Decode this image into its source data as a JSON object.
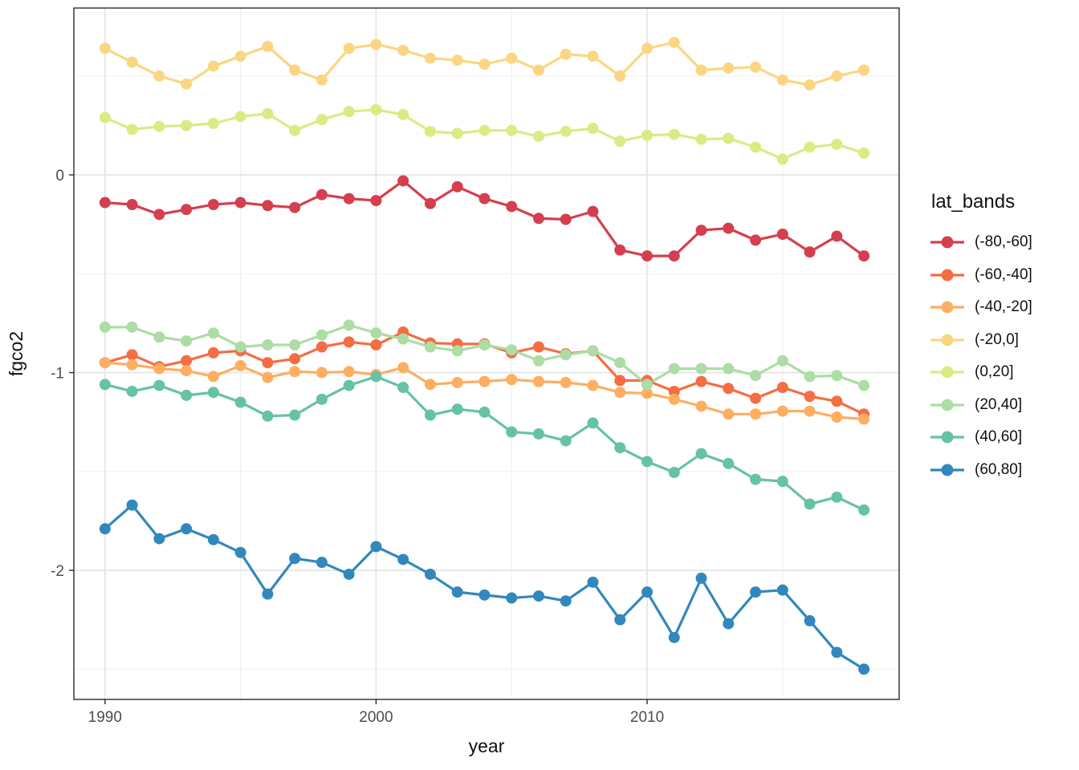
{
  "figure": {
    "x_axis_title": "year",
    "y_axis_title": "fgco2"
  },
  "legend": {
    "title": "lat_bands"
  },
  "chart_data": {
    "type": "line",
    "title": "",
    "xlabel": "year",
    "ylabel": "fgco2",
    "grid": true,
    "legend_position": "right",
    "x": [
      1990,
      1991,
      1992,
      1993,
      1994,
      1995,
      1996,
      1997,
      1998,
      1999,
      2000,
      2001,
      2002,
      2003,
      2004,
      2005,
      2006,
      2007,
      2008,
      2009,
      2010,
      2011,
      2012,
      2013,
      2014,
      2015,
      2016,
      2017,
      2018
    ],
    "xlim": [
      1988.85,
      2019.3
    ],
    "ylim": [
      -2.653,
      0.844
    ],
    "x_tick_values": [
      1990,
      2000,
      2010
    ],
    "x_tick_labels": [
      "1990",
      "2000",
      "2010"
    ],
    "x_minor_gridlines": [
      1995,
      2005,
      2015
    ],
    "y_tick_values": [
      0,
      -1,
      -2
    ],
    "y_tick_labels": [
      "0",
      "-1",
      "-2"
    ],
    "y_minor_gridlines": [
      0.5,
      -0.5,
      -1.5,
      -2.5
    ],
    "series": [
      {
        "name": "(-80,-60]",
        "color": "#D53E4F",
        "values": [
          -0.14,
          -0.15,
          -0.2,
          -0.175,
          -0.15,
          -0.14,
          -0.155,
          -0.165,
          -0.1,
          -0.12,
          -0.13,
          -0.03,
          -0.145,
          -0.06,
          -0.12,
          -0.16,
          -0.22,
          -0.225,
          -0.185,
          -0.38,
          -0.41,
          -0.41,
          -0.28,
          -0.27,
          -0.33,
          -0.3,
          -0.39,
          -0.31,
          -0.41
        ]
      },
      {
        "name": "(-60,-40]",
        "color": "#F46D43",
        "values": [
          -0.95,
          -0.91,
          -0.97,
          -0.94,
          -0.9,
          -0.89,
          -0.95,
          -0.93,
          -0.87,
          -0.845,
          -0.86,
          -0.795,
          -0.85,
          -0.855,
          -0.855,
          -0.9,
          -0.87,
          -0.905,
          -0.89,
          -1.04,
          -1.04,
          -1.095,
          -1.045,
          -1.08,
          -1.13,
          -1.075,
          -1.12,
          -1.145,
          -1.21
        ]
      },
      {
        "name": "(-40,-20]",
        "color": "#FDAE61",
        "values": [
          -0.95,
          -0.96,
          -0.98,
          -0.99,
          -1.02,
          -0.965,
          -1.025,
          -0.995,
          -1.0,
          -0.995,
          -1.01,
          -0.975,
          -1.06,
          -1.05,
          -1.045,
          -1.035,
          -1.045,
          -1.05,
          -1.065,
          -1.1,
          -1.105,
          -1.135,
          -1.17,
          -1.21,
          -1.21,
          -1.195,
          -1.195,
          -1.225,
          -1.235
        ]
      },
      {
        "name": "(-20,0]",
        "color": "#FBD682",
        "values": [
          0.64,
          0.57,
          0.5,
          0.46,
          0.55,
          0.6,
          0.65,
          0.53,
          0.48,
          0.64,
          0.66,
          0.63,
          0.59,
          0.58,
          0.56,
          0.59,
          0.53,
          0.61,
          0.6,
          0.5,
          0.64,
          0.67,
          0.53,
          0.54,
          0.545,
          0.48,
          0.455,
          0.5,
          0.53
        ]
      },
      {
        "name": "(0,20]",
        "color": "#D9EC83",
        "values": [
          0.29,
          0.23,
          0.245,
          0.25,
          0.26,
          0.295,
          0.31,
          0.225,
          0.28,
          0.32,
          0.33,
          0.305,
          0.22,
          0.21,
          0.225,
          0.225,
          0.195,
          0.22,
          0.235,
          0.17,
          0.2,
          0.205,
          0.18,
          0.185,
          0.14,
          0.08,
          0.14,
          0.155,
          0.11
        ]
      },
      {
        "name": "(20,40]",
        "color": "#ABDDA4",
        "values": [
          -0.77,
          -0.77,
          -0.82,
          -0.84,
          -0.8,
          -0.87,
          -0.86,
          -0.86,
          -0.81,
          -0.76,
          -0.8,
          -0.83,
          -0.87,
          -0.89,
          -0.86,
          -0.885,
          -0.94,
          -0.91,
          -0.89,
          -0.95,
          -1.06,
          -0.98,
          -0.98,
          -0.98,
          -1.015,
          -0.94,
          -1.02,
          -1.015,
          -1.065
        ]
      },
      {
        "name": "(40,60]",
        "color": "#66C2A5",
        "values": [
          -1.06,
          -1.095,
          -1.065,
          -1.115,
          -1.1,
          -1.15,
          -1.22,
          -1.215,
          -1.135,
          -1.065,
          -1.02,
          -1.075,
          -1.215,
          -1.185,
          -1.2,
          -1.3,
          -1.31,
          -1.345,
          -1.255,
          -1.38,
          -1.45,
          -1.505,
          -1.41,
          -1.46,
          -1.54,
          -1.55,
          -1.665,
          -1.63,
          -1.695
        ]
      },
      {
        "name": "(60,80]",
        "color": "#3288BD",
        "values": [
          -1.79,
          -1.67,
          -1.84,
          -1.79,
          -1.845,
          -1.91,
          -2.12,
          -1.94,
          -1.96,
          -2.02,
          -1.88,
          -1.945,
          -2.02,
          -2.11,
          -2.125,
          -2.14,
          -2.13,
          -2.155,
          -2.06,
          -2.25,
          -2.11,
          -2.34,
          -2.04,
          -2.27,
          -2.11,
          -2.1,
          -2.255,
          -2.415,
          -2.5
        ]
      }
    ]
  }
}
